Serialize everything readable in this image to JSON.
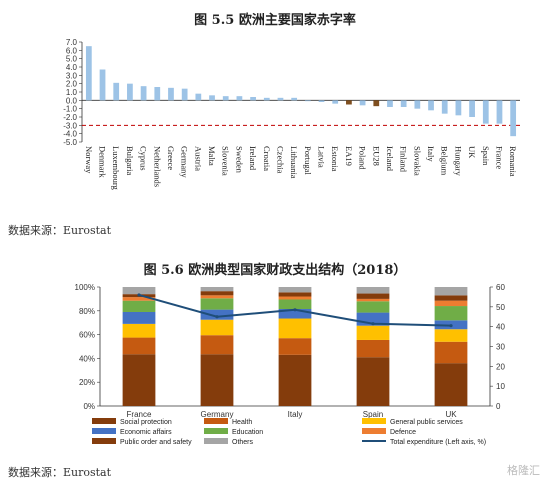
{
  "chart1_title": "图 5.5  欧洲主要国家赤字率",
  "chart2_title": "图 5.6  欧洲典型国家财政支出结构（2018）",
  "source1": "数据来源：Eurostat",
  "source2": "数据来源：Eurostat",
  "watermark": "格隆汇",
  "colors": {
    "bar_blue": "#9dc3e6",
    "bar_brown": "#7f4f1f",
    "threshold": "#c00000",
    "social": "#843c0c",
    "health": "#c55a11",
    "general": "#ffc000",
    "economic": "#4472c4",
    "education": "#70ad47",
    "defence": "#ed7d31",
    "order": "#843c0c",
    "others": "#a5a5a5",
    "line": "#1f4e79"
  },
  "chart_data": [
    {
      "type": "bar",
      "title": "图 5.5  欧洲主要国家赤字率",
      "categories": [
        "Norway",
        "Denmark",
        "Luxembourg",
        "Bulgaria",
        "Cyprus",
        "Netherlands",
        "Greece",
        "Germany",
        "Austria",
        "Malta",
        "Slovenia",
        "Sweden",
        "Ireland",
        "Croatia",
        "Czechia",
        "Lithuania",
        "Portugal",
        "Latvia",
        "Estonia",
        "EA19",
        "Poland",
        "EU28",
        "Iceland",
        "Finland",
        "Slovakia",
        "Italy",
        "Belgium",
        "Hungary",
        "UK",
        "Spain",
        "France",
        "Romania"
      ],
      "values": [
        6.5,
        3.7,
        2.1,
        2.0,
        1.7,
        1.6,
        1.5,
        1.4,
        0.8,
        0.6,
        0.5,
        0.5,
        0.4,
        0.3,
        0.3,
        0.3,
        -0.1,
        -0.2,
        -0.4,
        -0.5,
        -0.6,
        -0.7,
        -0.8,
        -0.8,
        -1.0,
        -1.2,
        -1.6,
        -1.8,
        -2.0,
        -2.8,
        -2.8,
        -4.3
      ],
      "highlight": [
        "EA19",
        "EU28"
      ],
      "threshold": -3.0,
      "yticks": [
        "7.0",
        "6.0",
        "5.0",
        "4.0",
        "3.0",
        "2.0",
        "1.0",
        "0.0",
        "-1.0",
        "-2.0",
        "-3.0",
        "-4.0",
        "-5.0"
      ],
      "ylim": [
        -5,
        7
      ]
    },
    {
      "type": "bar",
      "stacked": true,
      "title": "图 5.6  欧洲典型国家财政支出结构（2018）",
      "categories": [
        "France",
        "Germany",
        "Italy",
        "Spain",
        "UK"
      ],
      "series": [
        {
          "name": "Social protection",
          "key": "social",
          "values": [
            43.5,
            43.5,
            43.0,
            41.0,
            36.0
          ]
        },
        {
          "name": "Health",
          "key": "health",
          "values": [
            14.0,
            16.0,
            14.0,
            14.5,
            18.0
          ]
        },
        {
          "name": "General public services",
          "key": "general",
          "values": [
            11.5,
            13.0,
            16.5,
            12.0,
            10.5
          ]
        },
        {
          "name": "Economic affairs",
          "key": "economic",
          "values": [
            10.0,
            8.5,
            8.0,
            11.0,
            7.5
          ]
        },
        {
          "name": "Education",
          "key": "education",
          "values": [
            9.5,
            9.5,
            8.0,
            9.5,
            12.0
          ]
        },
        {
          "name": "Defence",
          "key": "defence",
          "values": [
            3.0,
            2.5,
            2.5,
            2.0,
            4.5
          ]
        },
        {
          "name": "Public order and safety",
          "key": "order",
          "values": [
            2.5,
            3.5,
            3.5,
            4.5,
            4.5
          ]
        },
        {
          "name": "Others",
          "key": "others",
          "values": [
            6.0,
            3.5,
            4.5,
            5.5,
            7.0
          ]
        }
      ],
      "line": {
        "name": "Total expenditure (Left axis, %)",
        "values": [
          56.0,
          45.0,
          48.5,
          41.5,
          40.5
        ]
      },
      "yticks_left": [
        "100%",
        "80%",
        "60%",
        "40%",
        "20%",
        "0%"
      ],
      "yticks_right": [
        "60",
        "50",
        "40",
        "30",
        "20",
        "10",
        "0"
      ],
      "ylim_left": [
        0,
        100
      ],
      "ylim_right": [
        0,
        60
      ]
    }
  ]
}
